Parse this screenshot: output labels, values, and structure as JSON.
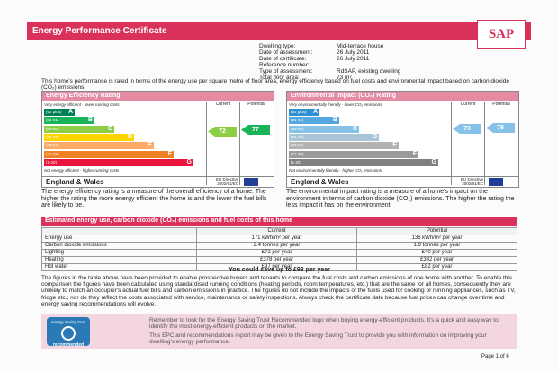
{
  "header": {
    "title": "Energy Performance Certificate",
    "logo": "SAP"
  },
  "details": [
    {
      "label": "Dwelling type:",
      "value": "Mid-terrace house"
    },
    {
      "label": "Date of assessment:",
      "value": "26 July 2011"
    },
    {
      "label": "Date of certificate:",
      "value": "26 July 2011"
    },
    {
      "label": "Reference number:"
    },
    {
      "label": "Type of assessment:",
      "value": "RdSAP, existing dwelling"
    },
    {
      "label": "Total floor area:",
      "value": "73 m²"
    }
  ],
  "intro": "This home's performance is rated in terms of the energy use per square metre of floor area, energy efficiency based on fuel costs and environmental impact based on carbon dioxide (CO₂) emissions.",
  "ratings": [
    {
      "title": "Energy Efficiency Rating",
      "current_label": "Current",
      "potential_label": "Potential",
      "top_note": "Very energy efficient - lower running costs",
      "bands": [
        {
          "range": "(92 plus)",
          "letter": "A"
        },
        {
          "range": "(81-91)",
          "letter": "B"
        },
        {
          "range": "(69-80)",
          "letter": "C"
        },
        {
          "range": "(55-68)",
          "letter": "D"
        },
        {
          "range": "(39-54)",
          "letter": "E"
        },
        {
          "range": "(21-38)",
          "letter": "F"
        },
        {
          "range": "(1-20)",
          "letter": "G"
        }
      ],
      "bottom_note": "Not energy efficient - higher running costs",
      "region": "England & Wales",
      "directive": "EU Directive 2002/91/EC",
      "current": 72,
      "potential": 77,
      "description": "The energy efficiency rating is a measure of the overall efficiency of a home. The higher the rating the more energy efficient the home is and the lower the fuel bills are likely to be."
    },
    {
      "title": "Environmental Impact (CO₂) Rating",
      "current_label": "Current",
      "potential_label": "Potential",
      "top_note": "Very environmentally friendly - lower CO₂ emissions",
      "bands": [
        {
          "range": "(92 plus)",
          "letter": "A"
        },
        {
          "range": "(81-91)",
          "letter": "B"
        },
        {
          "range": "(69-80)",
          "letter": "C"
        },
        {
          "range": "(55-68)",
          "letter": "D"
        },
        {
          "range": "(39-54)",
          "letter": "E"
        },
        {
          "range": "(21-38)",
          "letter": "F"
        },
        {
          "range": "(1-20)",
          "letter": "G"
        }
      ],
      "bottom_note": "Not environmentally friendly - higher CO₂ emissions",
      "region": "England & Wales",
      "directive": "EU Directive 2002/91/EC",
      "current": 73,
      "potential": 78,
      "description": "The environmental impact rating is a measure of a home's impact on the environment in terms of carbon dioxide (CO₂) emissions. The higher the rating the less impact it has on the environment."
    }
  ],
  "estimates": {
    "title": "Estimated energy use, carbon dioxide (CO₂) emissions and fuel costs of this home",
    "columns": [
      "Current",
      "Potential"
    ],
    "rows": [
      [
        "Energy use",
        "171 kWh/m² per year",
        "136 kWh/m² per year"
      ],
      [
        "Carbon dioxide emissions",
        "2.4 tonnes per year",
        "1.9 tonnes per year"
      ],
      [
        "Lighting",
        "£72 per year",
        "£40 per year"
      ],
      [
        "Heating",
        "£378 per year",
        "£332 per year"
      ],
      [
        "Hot water",
        "£97 per year",
        "£82 per year"
      ]
    ]
  },
  "savings": "You could save up to £93 per year",
  "explanation": "The figures in the table above have been provided to enable prospective buyers and tenants to compare the fuel costs and carbon emissions of one home with another. To enable this comparison the figures have been calculated using standardised running conditions (heating periods, room temperatures, etc.) that are the same for all homes, consequently they are unlikely to match an occupier's actual fuel bills and carbon emissions in practice. The figures do not include the impacts of the fuels used for cooking or running appliances, such as TV, fridge etc.; nor do they reflect the costs associated with service, maintenance or safety inspections. Always check the certificate date because fuel prices can change over time and energy saving recommendations will evolve.",
  "footer": {
    "logo_top": "energy saving trust",
    "logo_bottom": "recommended",
    "notes": [
      "Remember to look for the Energy Saving Trust Recommended logo when buying energy-efficient products. It's a quick and easy way to identify the most energy-efficient products on the market.",
      "This EPC and recommendations report may be given to the Energy Saving Trust to provide you with information on improving your dwelling's energy performance."
    ]
  },
  "page": "Page 1 of 6"
}
